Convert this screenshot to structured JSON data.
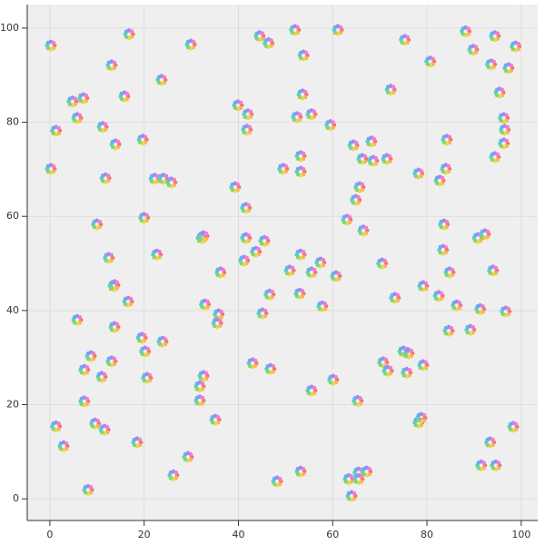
{
  "chart_data": {
    "type": "scatter",
    "marker_colors": [
      "#f4736a",
      "#f7b45a",
      "#e6d94f",
      "#8fd36a",
      "#5fd0b8",
      "#6aaef0",
      "#9a8cf0",
      "#ee7fd0"
    ],
    "background": "#efefef",
    "grid": true,
    "xlim": [
      -4.8,
      103.5
    ],
    "ylim": [
      -4.6,
      105
    ],
    "xticks": [
      0,
      20,
      40,
      60,
      80,
      100
    ],
    "yticks": [
      0,
      20,
      40,
      60,
      80,
      100
    ],
    "x": [
      0.2,
      1.3,
      0.2,
      1.3,
      2.9,
      8.1,
      4.8,
      7.1,
      5.8,
      11.2,
      11.8,
      10.0,
      5.8,
      7.3,
      8.7,
      7.3,
      9.6,
      11.6,
      13.1,
      15.8,
      13.9,
      12.5,
      13.5,
      13.7,
      13.7,
      13.1,
      11.0,
      16.8,
      16.6,
      19.7,
      20.0,
      19.5,
      20.2,
      20.6,
      18.5,
      23.7,
      22.2,
      24.1,
      25.8,
      22.7,
      23.9,
      26.2,
      29.3,
      29.9,
      32.2,
      32.6,
      32.9,
      35.8,
      35.5,
      36.2,
      35.1,
      31.8,
      32.6,
      31.8,
      39.3,
      39.9,
      42.0,
      41.8,
      41.6,
      41.6,
      41.2,
      43.7,
      45.5,
      45.1,
      43.0,
      46.6,
      46.8,
      48.2,
      44.5,
      46.4,
      52.0,
      53.8,
      53.6,
      52.4,
      55.5,
      49.5,
      53.2,
      53.2,
      53.2,
      50.9,
      55.5,
      57.4,
      53.0,
      57.8,
      60.7,
      53.2,
      55.5,
      60.1,
      61.1,
      59.5,
      64.4,
      66.3,
      68.2,
      68.6,
      71.5,
      65.7,
      64.9,
      63.0,
      66.5,
      70.5,
      73.2,
      65.3,
      70.7,
      71.7,
      75.0,
      76.1,
      75.7,
      79.2,
      63.4,
      65.5,
      67.2,
      65.5,
      64.0,
      75.3,
      72.3,
      80.7,
      78.2,
      84.0,
      82.7,
      84.2,
      83.6,
      83.4,
      84.8,
      82.5,
      86.3,
      84.6,
      88.2,
      89.8,
      89.2,
      90.8,
      92.3,
      91.3,
      94.4,
      93.6,
      97.3,
      98.8,
      95.4,
      96.5,
      96.3,
      96.3,
      94.4,
      94.0,
      96.7,
      78.2,
      78.8,
      91.5,
      93.4,
      94.6,
      98.3,
      79.2
    ],
    "y": [
      96.3,
      78.2,
      70.1,
      15.4,
      11.2,
      1.9,
      84.4,
      85.1,
      80.9,
      79.0,
      68.1,
      58.3,
      38.0,
      27.4,
      30.3,
      20.7,
      16.0,
      14.7,
      92.1,
      85.5,
      75.3,
      51.2,
      45.2,
      45.4,
      36.5,
      29.2,
      25.9,
      98.7,
      41.9,
      76.3,
      59.7,
      34.2,
      31.3,
      25.7,
      12.0,
      89.0,
      68.0,
      68.0,
      67.2,
      51.9,
      33.4,
      5.0,
      8.9,
      96.5,
      55.4,
      55.8,
      41.3,
      39.2,
      37.3,
      48.1,
      16.8,
      23.9,
      26.1,
      20.9,
      66.2,
      83.6,
      81.7,
      78.4,
      61.8,
      55.4,
      50.6,
      52.5,
      54.8,
      39.4,
      28.8,
      43.4,
      27.6,
      3.7,
      98.3,
      96.8,
      99.6,
      94.2,
      85.9,
      81.1,
      81.7,
      70.1,
      72.8,
      69.5,
      51.9,
      48.5,
      48.1,
      50.2,
      43.6,
      40.9,
      47.3,
      5.8,
      23.0,
      25.3,
      99.6,
      79.4,
      75.1,
      72.2,
      75.9,
      71.8,
      72.2,
      66.2,
      63.5,
      59.3,
      57.0,
      50.0,
      42.7,
      20.8,
      29.0,
      27.2,
      31.3,
      30.9,
      26.8,
      28.4,
      4.2,
      5.6,
      5.8,
      4.2,
      0.6,
      97.5,
      86.9,
      92.9,
      69.1,
      70.1,
      67.6,
      76.3,
      58.3,
      52.9,
      48.1,
      43.1,
      41.1,
      35.7,
      99.3,
      95.4,
      35.9,
      55.4,
      56.2,
      40.3,
      98.3,
      92.3,
      91.5,
      96.1,
      86.3,
      78.4,
      80.9,
      75.5,
      72.6,
      48.5,
      39.8,
      16.2,
      17.2,
      7.1,
      12.0,
      7.1,
      15.3,
      45.2
    ]
  }
}
